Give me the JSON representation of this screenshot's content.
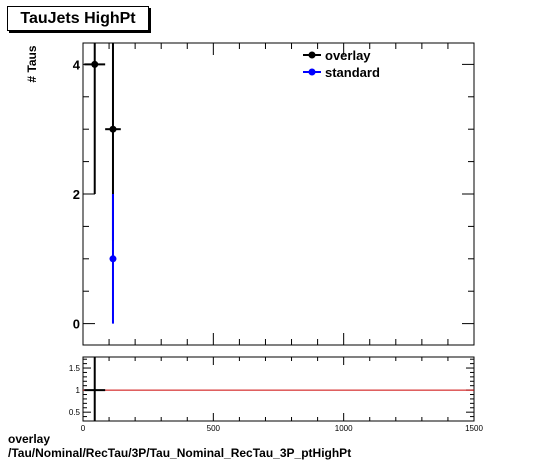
{
  "chart_data": [
    {
      "type": "scatter",
      "title": "TauJets HighPt",
      "ylabel": "# Taus",
      "xlim": [
        0,
        1500
      ],
      "ylim": [
        -0.33,
        4.33
      ],
      "y_major_ticks": [
        0,
        2,
        4
      ],
      "legend_position": "top-right",
      "series": [
        {
          "name": "overlay",
          "color": "#000000",
          "points": [
            {
              "x": 45,
              "y": 4,
              "xerr": 40,
              "ylo": 2,
              "yhi": 6
            },
            {
              "x": 115,
              "y": 3,
              "xerr": 30,
              "ylo": 1.27,
              "yhi": 4.73
            }
          ]
        },
        {
          "name": "standard",
          "color": "#0000ff",
          "points": [
            {
              "x": 115,
              "y": 1,
              "xerr": 0,
              "ylo": 0,
              "yhi": 2
            }
          ]
        }
      ]
    },
    {
      "type": "line",
      "xlim": [
        0,
        1500
      ],
      "ylim": [
        0.3,
        1.75
      ],
      "x_major_ticks": [
        0,
        500,
        1000,
        1500
      ],
      "y_major_ticks": [
        0.5,
        1,
        1.5
      ],
      "y_tick_labels": [
        "0.5",
        "1",
        "1.5"
      ],
      "reference_line": {
        "y": 1,
        "color": "#cc0000"
      },
      "ratio_points": [
        {
          "x": 45,
          "y": 1,
          "xerr": 40,
          "ylo": 0.3,
          "yhi": 1.75
        }
      ]
    }
  ],
  "footer": {
    "line1": "overlay",
    "line2": "/Tau/Nominal/RecTau/3P/Tau_Nominal_RecTau_3P_ptHighPt"
  }
}
